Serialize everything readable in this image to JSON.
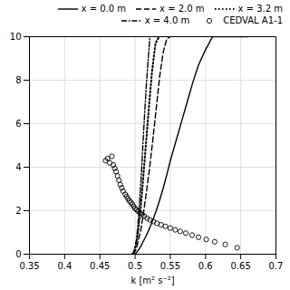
{
  "chart_data": {
    "type": "line",
    "xlabel": "k [m² s⁻²]",
    "xlim": [
      0.35,
      0.7
    ],
    "ylim": [
      0,
      10
    ],
    "xticks": [
      0.35,
      0.4,
      0.45,
      0.5,
      0.55,
      0.6,
      0.65,
      0.7
    ],
    "yticks": [
      0,
      2,
      4,
      6,
      8,
      10
    ],
    "grid": true,
    "legend": "upper right",
    "series": [
      {
        "name": "x = 0.0 m",
        "color": "#000000",
        "line_style": "solid",
        "x": [
          0.5,
          0.502,
          0.505,
          0.508,
          0.511,
          0.515,
          0.52,
          0.525,
          0.53,
          0.535,
          0.54,
          0.545,
          0.55,
          0.558,
          0.566,
          0.574,
          0.582,
          0.59,
          0.6,
          0.61,
          0.62,
          0.63,
          0.64,
          0.65,
          0.66
        ],
        "values": [
          0.0,
          0.08,
          0.2,
          0.36,
          0.55,
          0.8,
          1.15,
          1.55,
          2.0,
          2.5,
          3.05,
          3.65,
          4.3,
          5.2,
          6.1,
          7.0,
          7.9,
          8.7,
          9.4,
          10.0,
          10.0,
          10.0,
          10.0,
          10.0,
          10.0
        ]
      },
      {
        "name": "x = 2.0 m",
        "color": "#000000",
        "line_style": "dashed",
        "x": [
          0.497,
          0.499,
          0.501,
          0.503,
          0.505,
          0.508,
          0.511,
          0.515,
          0.52,
          0.525,
          0.53,
          0.535,
          0.54,
          0.545,
          0.55
        ],
        "values": [
          0.0,
          0.08,
          0.2,
          0.4,
          0.7,
          1.1,
          1.7,
          2.6,
          3.8,
          5.2,
          6.7,
          8.2,
          9.3,
          9.9,
          10.0
        ]
      },
      {
        "name": "x = 3.2 m",
        "color": "#000000",
        "line_style": "dotted",
        "x": [
          0.496,
          0.498,
          0.5,
          0.502,
          0.504,
          0.507,
          0.51,
          0.514,
          0.519,
          0.524,
          0.529,
          0.534
        ],
        "values": [
          0.0,
          0.08,
          0.25,
          0.55,
          1.0,
          1.8,
          2.9,
          4.5,
          6.5,
          8.4,
          9.7,
          10.0
        ]
      },
      {
        "name": "x = 4.0 m",
        "color": "#000000",
        "line_style": "dashdot",
        "x": [
          0.496,
          0.498,
          0.5,
          0.502,
          0.504,
          0.506,
          0.509,
          0.512,
          0.516,
          0.521
        ],
        "values": [
          0.0,
          0.1,
          0.3,
          0.7,
          1.3,
          2.2,
          3.7,
          5.6,
          7.8,
          10.0
        ]
      },
      {
        "name": "CEDVAL A1-1",
        "type": "scatter",
        "marker": "circle",
        "color": "#000000",
        "x": [
          0.458,
          0.461,
          0.464,
          0.467,
          0.469,
          0.471,
          0.473,
          0.475,
          0.477,
          0.479,
          0.481,
          0.483,
          0.486,
          0.488,
          0.49,
          0.492,
          0.494,
          0.496,
          0.498,
          0.5,
          0.502,
          0.504,
          0.507,
          0.51,
          0.513,
          0.517,
          0.521,
          0.526,
          0.531,
          0.537,
          0.543,
          0.55,
          0.557,
          0.564,
          0.572,
          0.581,
          0.59,
          0.601,
          0.613,
          0.628,
          0.645
        ],
        "values": [
          4.3,
          4.4,
          4.2,
          4.5,
          4.1,
          3.95,
          3.8,
          3.6,
          3.4,
          3.2,
          3.05,
          2.9,
          2.75,
          2.65,
          2.55,
          2.45,
          2.38,
          2.3,
          2.2,
          2.1,
          2.05,
          1.98,
          1.9,
          1.82,
          1.75,
          1.65,
          1.58,
          1.5,
          1.42,
          1.35,
          1.28,
          1.2,
          1.12,
          1.05,
          0.97,
          0.88,
          0.78,
          0.68,
          0.57,
          0.45,
          0.3
        ]
      }
    ]
  }
}
